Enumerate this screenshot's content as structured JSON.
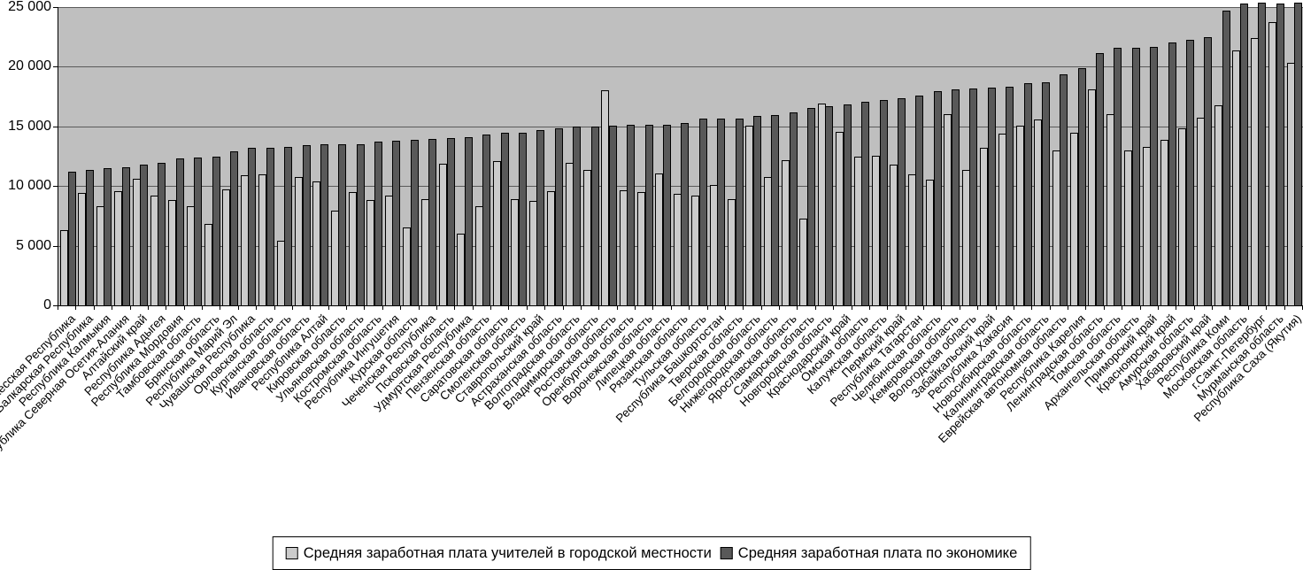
{
  "chart_data": {
    "type": "bar",
    "title": "",
    "xlabel": "",
    "ylabel": "",
    "ylim": [
      0,
      25000
    ],
    "yticks": [
      0,
      5000,
      10000,
      15000,
      20000,
      25000
    ],
    "ytick_labels": [
      "0",
      "5 000",
      "10 000",
      "15 000",
      "20 000",
      "25 000"
    ],
    "grid": "horizontal",
    "legend_position": "bottom",
    "plot_bg": "#bfbfbf",
    "categories": [
      "Карачаево-Черкесская Республика",
      "Кабардино-Балкарская Республика",
      "Республика Калмыкия",
      "Республика Северная Осетия-Алания",
      "Алтайский край",
      "Республика Адыгея",
      "Республика Мордовия",
      "Тамбовская область",
      "Брянская область",
      "Республика Марий Эл",
      "Чувашская Республика",
      "Орловская область",
      "Курганская область",
      "Ивановская область",
      "Республика Алтай",
      "Кировская область",
      "Ульяновская область",
      "Костромская область",
      "Республика Ингушетия",
      "Курская область",
      "Чеченская Республика",
      "Псковская область",
      "Удмуртская Республика",
      "Пензенская область",
      "Саратовская область",
      "Смоленская область",
      "Ставропольский край",
      "Астраханская область",
      "Волгоградская область",
      "Владимирская область",
      "Ростовская область",
      "Оренбургская область",
      "Воронежская область",
      "Липецкая область",
      "Рязанская область",
      "Тульская область",
      "Республика Башкортостан",
      "Тверская область",
      "Белгородская область",
      "Нижегородская область",
      "Ярославская область",
      "Самарская область",
      "Новгородская область",
      "Краснодарский край",
      "Омская область",
      "Калужская область",
      "Пермский край",
      "Республика Татарстан",
      "Челябинская область",
      "Кемеровская область",
      "Вологодская область",
      "Забайкальский край",
      "Республика Хакасия",
      "Новосибирская область",
      "Калининградская область",
      "Еврейская автономная область",
      "Республика Карелия",
      "Ленинградская область",
      "Томская область",
      "Архангельская область",
      "Приморский край",
      "Красноярский край",
      "Амурская область",
      "Хабаровский край",
      "Республика Коми",
      "Московская область",
      "г.Санкт-Петербург",
      "Мурманская область",
      "Республика Саха (Якутия)"
    ],
    "series": [
      {
        "name": "Средняя заработная плата учителей в городской местности",
        "color": "#cbcbcb",
        "values": [
          6300,
          9420,
          8280,
          9570,
          10610,
          9180,
          8860,
          8330,
          6800,
          9690,
          10900,
          10980,
          5390,
          10760,
          10390,
          7960,
          9520,
          8850,
          9180,
          6500,
          8900,
          11870,
          6010,
          8280,
          12120,
          8900,
          8730,
          9590,
          11970,
          11370,
          18000,
          9640,
          9500,
          11050,
          9320,
          9200,
          10070,
          8900,
          15050,
          10730,
          12140,
          7250,
          16900,
          14540,
          12490,
          12560,
          11800,
          10950,
          10510,
          16020,
          11320,
          13230,
          14410,
          15100,
          15600,
          13000,
          14500,
          18100,
          16000,
          13000,
          13300,
          13850,
          14840,
          15700,
          16800,
          21400,
          22430,
          23740,
          20330
        ]
      },
      {
        "name": "Средняя заработная плата по экономике",
        "color": "#595959",
        "values": [
          11200,
          11350,
          11470,
          11580,
          11800,
          11980,
          12350,
          12400,
          12500,
          12900,
          13190,
          13190,
          13290,
          13440,
          13540,
          13490,
          13540,
          13750,
          13800,
          13870,
          13920,
          14000,
          14090,
          14340,
          14470,
          14480,
          14710,
          14810,
          14960,
          15010,
          15080,
          15130,
          15140,
          15140,
          15260,
          15620,
          15660,
          15690,
          15900,
          15940,
          16150,
          16520,
          16660,
          16860,
          17040,
          17210,
          17380,
          17560,
          17980,
          18080,
          18170,
          18220,
          18300,
          18660,
          18690,
          19360,
          19890,
          21150,
          21560,
          21600,
          21650,
          22050,
          22250,
          22500,
          24700,
          25300,
          25350,
          25300,
          25340
        ]
      }
    ]
  }
}
